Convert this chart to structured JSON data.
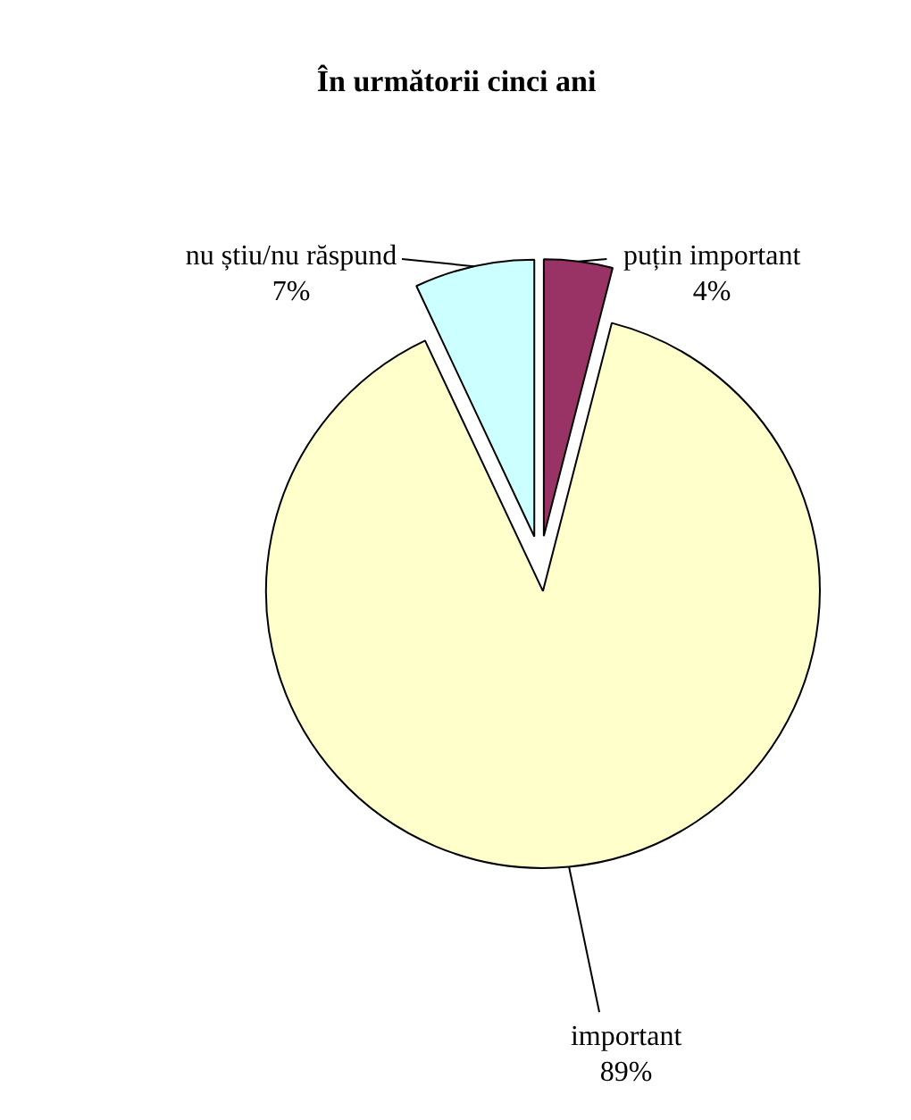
{
  "chart_data": {
    "type": "pie",
    "title": "În următorii cinci ani",
    "categories": [
      "puțin important",
      "important",
      "nu știu/nu răspund"
    ],
    "values": [
      4,
      89,
      7
    ],
    "value_labels": [
      "4%",
      "89%",
      "7%"
    ],
    "colors": [
      "#993366",
      "#ffffcc",
      "#ccffff"
    ]
  }
}
